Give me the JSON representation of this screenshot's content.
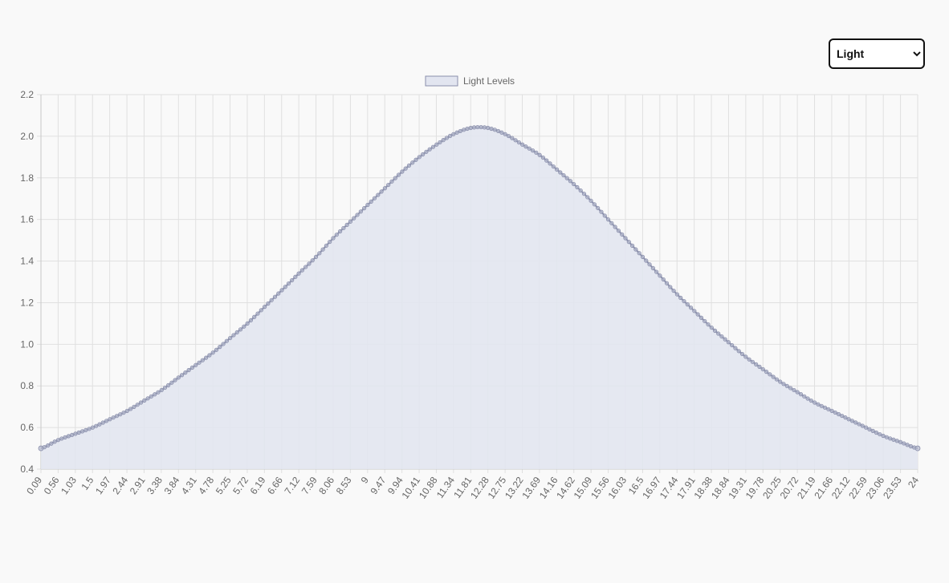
{
  "controls": {
    "metric_select": {
      "selected": "Light",
      "options": [
        "Light"
      ]
    }
  },
  "colors": {
    "background": "#f9f9f9",
    "line": "#8a8fab",
    "fill": "#e2e5f0",
    "point": "#b7bbcf",
    "grid": "#e0e0e0",
    "axis": "#c8c8c8",
    "tick_text": "#666666"
  },
  "chart_data": {
    "type": "area",
    "title": "",
    "xlabel": "",
    "ylabel": "",
    "legend": {
      "position": "top",
      "entries": [
        "Light Levels"
      ]
    },
    "grid": true,
    "ylim": [
      0.4,
      2.2
    ],
    "y_ticks": [
      "0.4",
      "0.6",
      "0.8",
      "1.0",
      "1.2",
      "1.4",
      "1.6",
      "1.8",
      "2.0",
      "2.2"
    ],
    "x_range": [
      0.09,
      24
    ],
    "x_tick_labels": [
      "0.09",
      "0.56",
      "1.03",
      "1.5",
      "1.97",
      "2.44",
      "2.91",
      "3.38",
      "3.84",
      "4.31",
      "4.78",
      "5.25",
      "5.72",
      "6.19",
      "6.66",
      "7.12",
      "7.59",
      "8.06",
      "8.53",
      "9",
      "9.47",
      "9.94",
      "10.41",
      "10.88",
      "11.34",
      "11.81",
      "12.28",
      "12.75",
      "13.22",
      "13.69",
      "14.16",
      "14.62",
      "15.09",
      "15.56",
      "16.03",
      "16.5",
      "16.97",
      "17.44",
      "17.91",
      "18.38",
      "18.84",
      "19.31",
      "19.78",
      "20.25",
      "20.72",
      "21.19",
      "21.66",
      "22.12",
      "22.59",
      "23.06",
      "23.53",
      "24"
    ],
    "series": [
      {
        "name": "Light Levels",
        "x": [
          0.09,
          0.56,
          1.03,
          1.5,
          1.97,
          2.44,
          2.91,
          3.38,
          3.84,
          4.31,
          4.78,
          5.25,
          5.72,
          6.19,
          6.66,
          7.12,
          7.59,
          8.06,
          8.53,
          9,
          9.47,
          9.94,
          10.41,
          10.88,
          11.34,
          11.81,
          12.28,
          12.75,
          13.22,
          13.69,
          14.16,
          14.62,
          15.09,
          15.56,
          16.03,
          16.5,
          16.97,
          17.44,
          17.91,
          18.38,
          18.84,
          19.31,
          19.78,
          20.25,
          20.72,
          21.19,
          21.66,
          22.12,
          22.59,
          23.06,
          23.53,
          24
        ],
        "values": [
          0.5,
          0.54,
          0.57,
          0.6,
          0.64,
          0.68,
          0.73,
          0.78,
          0.84,
          0.9,
          0.96,
          1.03,
          1.1,
          1.18,
          1.26,
          1.34,
          1.42,
          1.51,
          1.59,
          1.67,
          1.75,
          1.83,
          1.9,
          1.96,
          2.01,
          2.04,
          2.04,
          2.01,
          1.96,
          1.91,
          1.84,
          1.77,
          1.69,
          1.6,
          1.51,
          1.42,
          1.33,
          1.24,
          1.16,
          1.08,
          1.01,
          0.94,
          0.88,
          0.82,
          0.77,
          0.72,
          0.68,
          0.64,
          0.6,
          0.56,
          0.53,
          0.5
        ]
      }
    ]
  }
}
